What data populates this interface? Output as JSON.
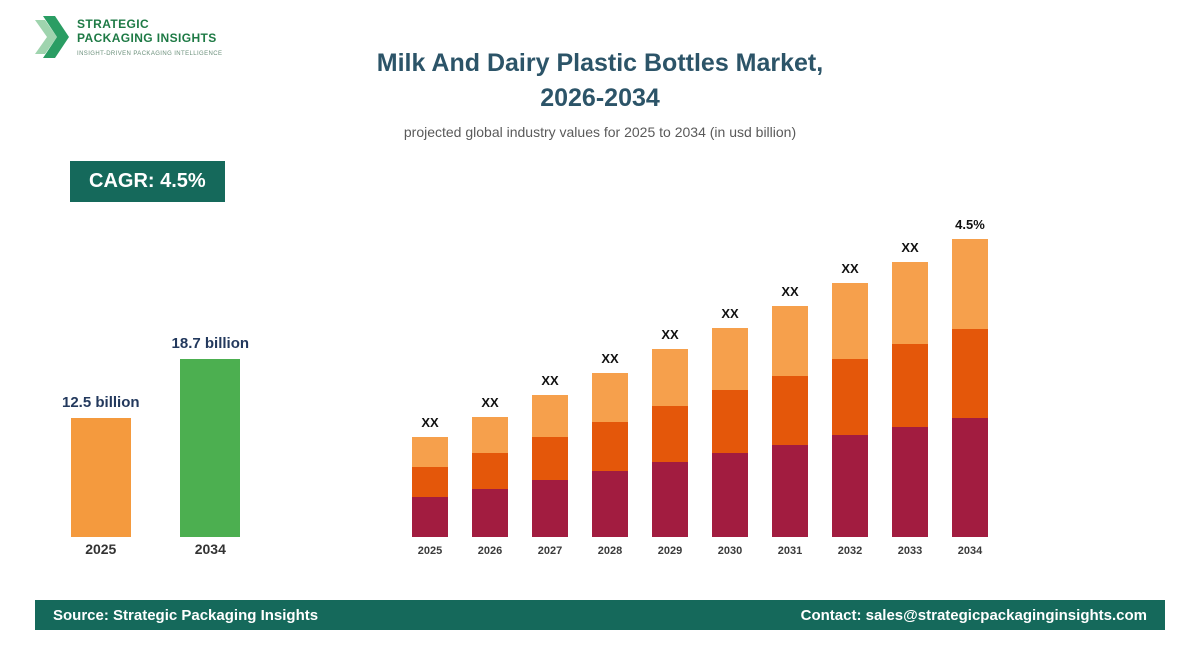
{
  "logo": {
    "line1": "STRATEGIC",
    "line2": "PACKAGING INSIGHTS",
    "tagline": "INSIGHT-DRIVEN PACKAGING INTELLIGENCE"
  },
  "header": {
    "title_line1": "Milk And Dairy Plastic Bottles Market,",
    "title_line2": "2026-2034",
    "subtitle": "projected global industry values for 2025 to 2034 (in usd billion)"
  },
  "cagr_badge": "CAGR: 4.5%",
  "colors": {
    "teal": "#15695B",
    "orange": "#F49A3E",
    "green": "#4CAF50",
    "maroon": "#A21C40",
    "dark_orange": "#E4570A",
    "light_orange": "#F6A04C",
    "title": "#2C5468"
  },
  "chart_data": [
    {
      "type": "bar",
      "title": "2025 vs 2034 market size summary",
      "categories": [
        "2025",
        "2034"
      ],
      "values": [
        12.5,
        18.7
      ],
      "value_labels": [
        "12.5 billion",
        "18.7 billion"
      ],
      "bar_colors": [
        "#F49A3E",
        "#4CAF50"
      ],
      "unit": "usd billion",
      "xlabel": "",
      "ylabel": "",
      "grid": false,
      "legend": false
    },
    {
      "type": "bar",
      "stacked": true,
      "title": "Milk And Dairy Plastic Bottles Market, 2025-2034 (values masked as XX)",
      "categories": [
        "2025",
        "2026",
        "2027",
        "2028",
        "2029",
        "2030",
        "2031",
        "2032",
        "2033",
        "2034"
      ],
      "series": [
        {
          "name": "segment-bottom",
          "color": "#A21C40",
          "values": [
            40,
            48,
            57,
            66,
            75,
            84,
            92,
            102,
            110,
            119
          ]
        },
        {
          "name": "segment-middle",
          "color": "#E4570A",
          "values": [
            30,
            36,
            43,
            49,
            56,
            63,
            69,
            76,
            83,
            89
          ]
        },
        {
          "name": "segment-top",
          "color": "#F6A04C",
          "values": [
            30,
            36,
            42,
            49,
            57,
            62,
            70,
            76,
            82,
            90
          ]
        }
      ],
      "bar_labels": [
        "XX",
        "XX",
        "XX",
        "XX",
        "XX",
        "XX",
        "XX",
        "XX",
        "XX",
        "4.5%"
      ],
      "values_note": "numeric values not shown in image (displayed as XX); series values are relative heights",
      "xlabel": "",
      "ylabel": "",
      "grid": false,
      "legend": false
    }
  ],
  "footer": {
    "source": "Source: Strategic Packaging Insights",
    "contact": "Contact: sales@strategicpackaginginsights.com"
  }
}
